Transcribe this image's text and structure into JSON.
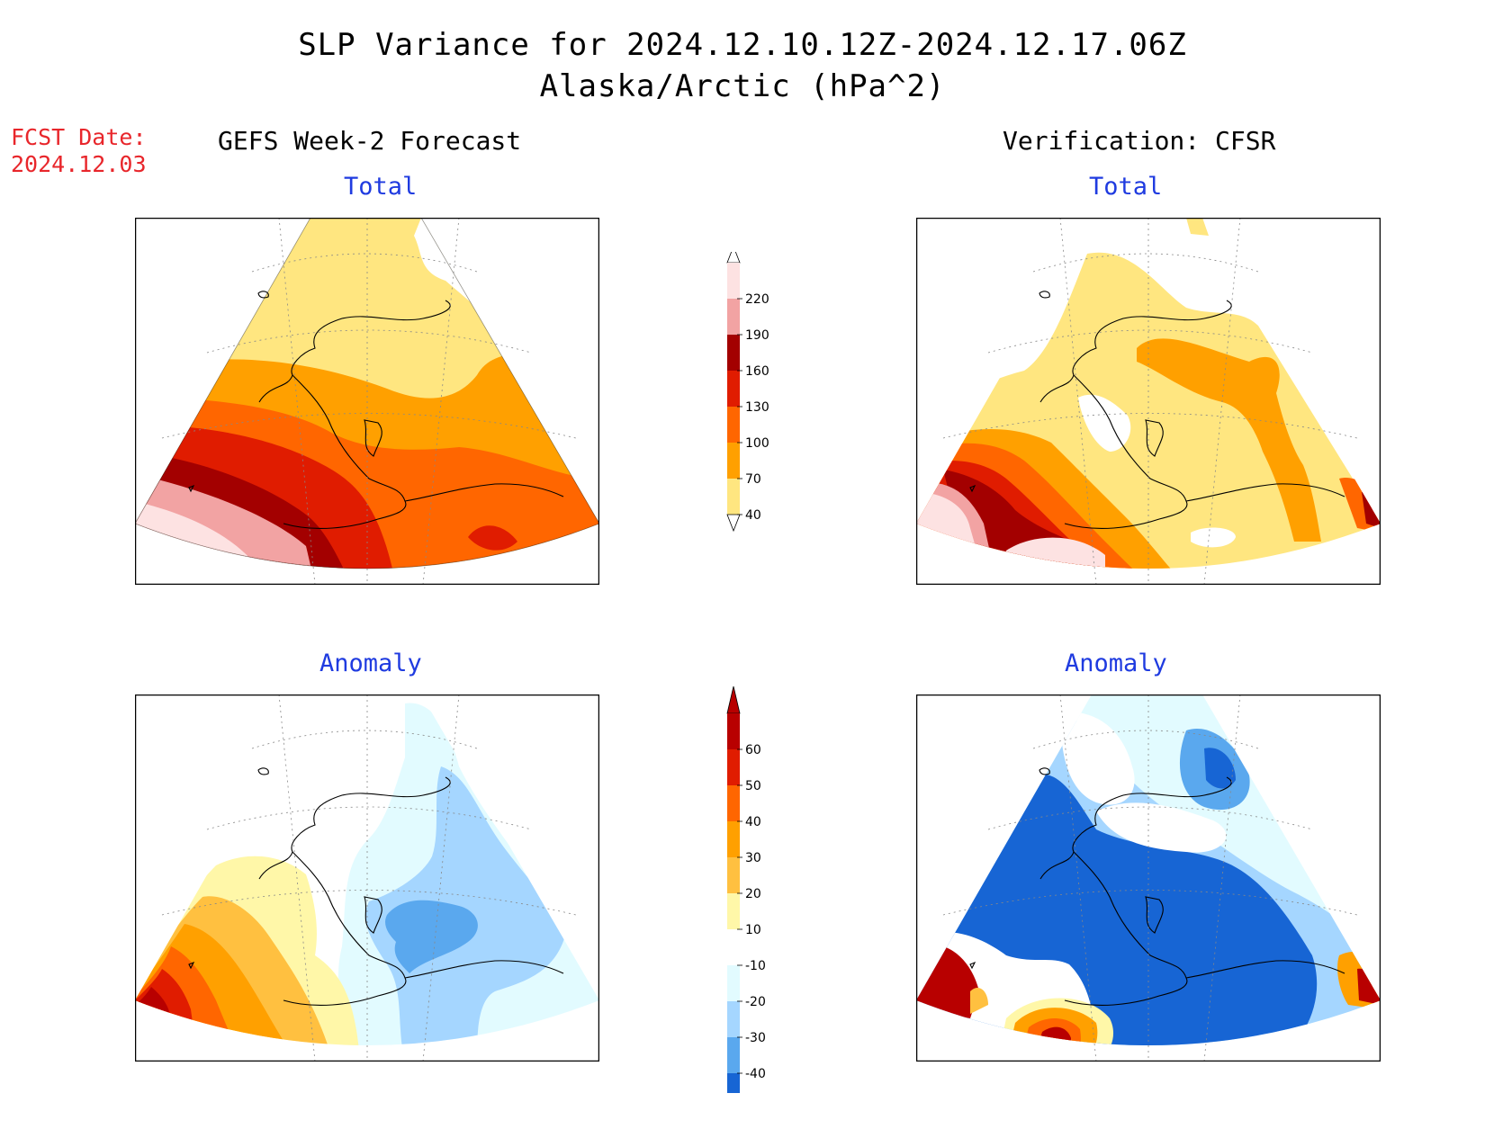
{
  "title": {
    "line1": "SLP Variance for 2024.12.10.12Z-2024.12.17.06Z",
    "line2": "Alaska/Arctic (hPa^2)"
  },
  "forecast_date": {
    "label": "FCST Date:",
    "value": "2024.12.03"
  },
  "columns": {
    "left": "GEFS Week-2 Forecast",
    "right": "Verification: CFSR"
  },
  "panels": {
    "top_left": "Total",
    "top_right": "Total",
    "bottom_left": "Anomaly",
    "bottom_right": "Anomaly"
  },
  "colorbars": {
    "total": {
      "labels": [
        "220",
        "190",
        "160",
        "130",
        "100",
        "70",
        "40"
      ],
      "colors": [
        "#fde2e2",
        "#f2a3a3",
        "#a30000",
        "#e01c00",
        "#ff6600",
        "#ffa000",
        "#ffe680"
      ]
    },
    "anomaly": {
      "labels": [
        "60",
        "50",
        "40",
        "30",
        "20",
        "10",
        "-10",
        "-20",
        "-30",
        "-40"
      ],
      "colors": [
        "#b80000",
        "#e01c00",
        "#ff6600",
        "#ffa000",
        "#ffc040",
        "#fff7a8",
        "#ffffff",
        "#e2fbff",
        "#a5d6ff",
        "#5aa8ee",
        "#1765d4"
      ]
    }
  },
  "colors": {
    "fcst_text": "#e8262b",
    "subtitle_text": "#1f3be0"
  }
}
